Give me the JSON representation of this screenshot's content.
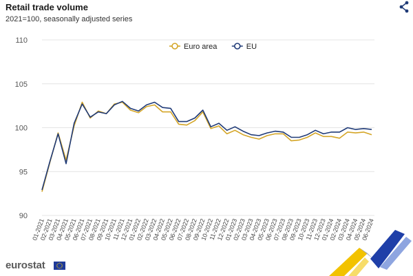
{
  "header": {
    "title": "Retail trade volume",
    "subtitle": "2021=100, seasonally adjusted series",
    "share_icon": "share-icon"
  },
  "footer": {
    "logo_text": "eurostat",
    "flag_icon": "eu-flag-icon"
  },
  "colors": {
    "euro_area": "#d4a526",
    "eu": "#1f3a77",
    "grid": "#e4e4e4",
    "share": "#1f3a77"
  },
  "chart_data": {
    "type": "line",
    "title": "Retail trade volume",
    "subtitle": "2021=100, seasonally adjusted series",
    "xlabel": "",
    "ylabel": "",
    "ylim": [
      90,
      110
    ],
    "yticks": [
      90,
      95,
      100,
      105,
      110
    ],
    "grid": true,
    "legend_position": "top-center",
    "categories": [
      "01-2021",
      "02-2021",
      "03-2021",
      "04-2021",
      "05-2021",
      "06-2021",
      "07-2021",
      "08-2021",
      "09-2021",
      "10-2021",
      "11-2021",
      "12-2021",
      "01-2022",
      "02-2022",
      "03-2022",
      "04-2022",
      "05-2022",
      "06-2022",
      "07-2022",
      "08-2022",
      "09-2022",
      "10-2022",
      "11-2022",
      "12-2022",
      "01-2023",
      "02-2023",
      "03-2023",
      "04-2023",
      "05-2023",
      "06-2023",
      "07-2023",
      "08-2023",
      "09-2023",
      "10-2023",
      "11-2023",
      "12-2023",
      "01-2024",
      "02-2024",
      "03-2024",
      "04-2024",
      "05-2024",
      "06-2024"
    ],
    "series": [
      {
        "name": "Euro area",
        "color": "#d4a526",
        "values": [
          92.7,
          96.1,
          99.4,
          96.3,
          100.2,
          102.9,
          101.1,
          101.9,
          101.6,
          102.7,
          102.9,
          102.0,
          101.7,
          102.4,
          102.6,
          101.8,
          101.8,
          100.4,
          100.3,
          100.8,
          101.8,
          99.9,
          100.2,
          99.3,
          99.7,
          99.2,
          98.9,
          98.7,
          99.1,
          99.3,
          99.3,
          98.5,
          98.6,
          98.9,
          99.4,
          99.0,
          99.0,
          98.8,
          99.5,
          99.4,
          99.5,
          99.2
        ]
      },
      {
        "name": "EU",
        "color": "#1f3a77",
        "values": [
          92.9,
          96.2,
          99.3,
          95.9,
          100.5,
          102.7,
          101.2,
          101.8,
          101.6,
          102.6,
          103.0,
          102.2,
          101.9,
          102.6,
          102.9,
          102.3,
          102.2,
          100.7,
          100.7,
          101.1,
          102.0,
          100.1,
          100.5,
          99.7,
          100.1,
          99.6,
          99.2,
          99.1,
          99.4,
          99.6,
          99.5,
          98.9,
          98.9,
          99.2,
          99.7,
          99.3,
          99.5,
          99.5,
          100.0,
          99.8,
          99.9,
          99.8
        ]
      }
    ]
  }
}
